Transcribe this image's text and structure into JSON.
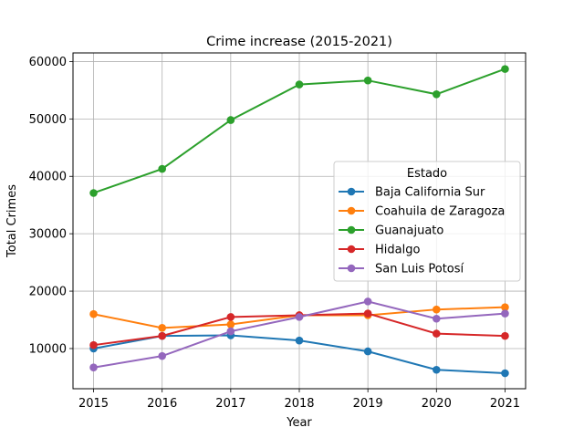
{
  "chart_data": {
    "type": "line",
    "title": "Crime increase (2015-2021)",
    "xlabel": "Year",
    "ylabel": "Total Crimes",
    "x": [
      2015,
      2016,
      2017,
      2018,
      2019,
      2020,
      2021
    ],
    "xlim": [
      2014.7,
      2021.3
    ],
    "ylim": [
      3000,
      61500
    ],
    "yticks": [
      10000,
      20000,
      30000,
      40000,
      50000,
      60000
    ],
    "grid": true,
    "legend": {
      "title": "Estado",
      "placement": "center-right"
    },
    "series": [
      {
        "name": "Baja California Sur",
        "color": "#1f77b4",
        "values": [
          10000,
          12200,
          12300,
          11400,
          9500,
          6300,
          5700
        ]
      },
      {
        "name": "Coahuila de Zaragoza",
        "color": "#ff7f0e",
        "values": [
          16000,
          13600,
          14200,
          15800,
          15800,
          16800,
          17200
        ]
      },
      {
        "name": "Guanajuato",
        "color": "#2ca02c",
        "values": [
          37100,
          41300,
          49800,
          56000,
          56700,
          54300,
          58700
        ]
      },
      {
        "name": "Hidalgo",
        "color": "#d62728",
        "values": [
          10600,
          12200,
          15500,
          15800,
          16100,
          12600,
          12200
        ]
      },
      {
        "name": "San Luis Potosí",
        "color": "#9467bd",
        "values": [
          6700,
          8700,
          13000,
          15500,
          18200,
          15200,
          16100
        ]
      }
    ]
  }
}
